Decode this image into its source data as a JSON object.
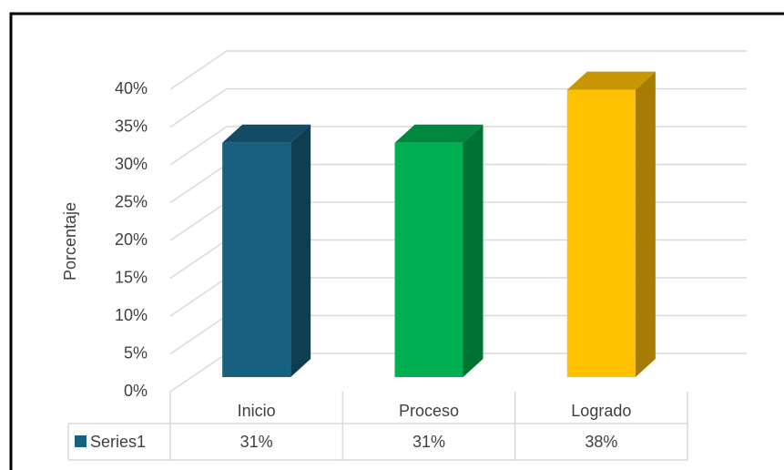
{
  "chart_data": {
    "type": "bar3d",
    "y_axis_label": "Porcentaje",
    "categories": [
      "Inicio",
      "Proceso",
      "Logrado"
    ],
    "series": [
      {
        "name": "Series1",
        "color": "#17607f",
        "values": [
          31,
          31,
          38
        ],
        "value_labels": [
          "31%",
          "31%",
          "38%"
        ],
        "point_colors": [
          "#17607f",
          "#00b050",
          "#ffc000"
        ]
      }
    ],
    "ylim": [
      0,
      40
    ],
    "yticks": [
      {
        "value": 0,
        "label": "0%"
      },
      {
        "value": 5,
        "label": "5%"
      },
      {
        "value": 10,
        "label": "10%"
      },
      {
        "value": 15,
        "label": "15%"
      },
      {
        "value": 20,
        "label": "20%"
      },
      {
        "value": 25,
        "label": "25%"
      },
      {
        "value": 30,
        "label": "30%"
      },
      {
        "value": 35,
        "label": "35%"
      },
      {
        "value": 40,
        "label": "40%"
      }
    ],
    "grid": true,
    "data_table": true
  }
}
